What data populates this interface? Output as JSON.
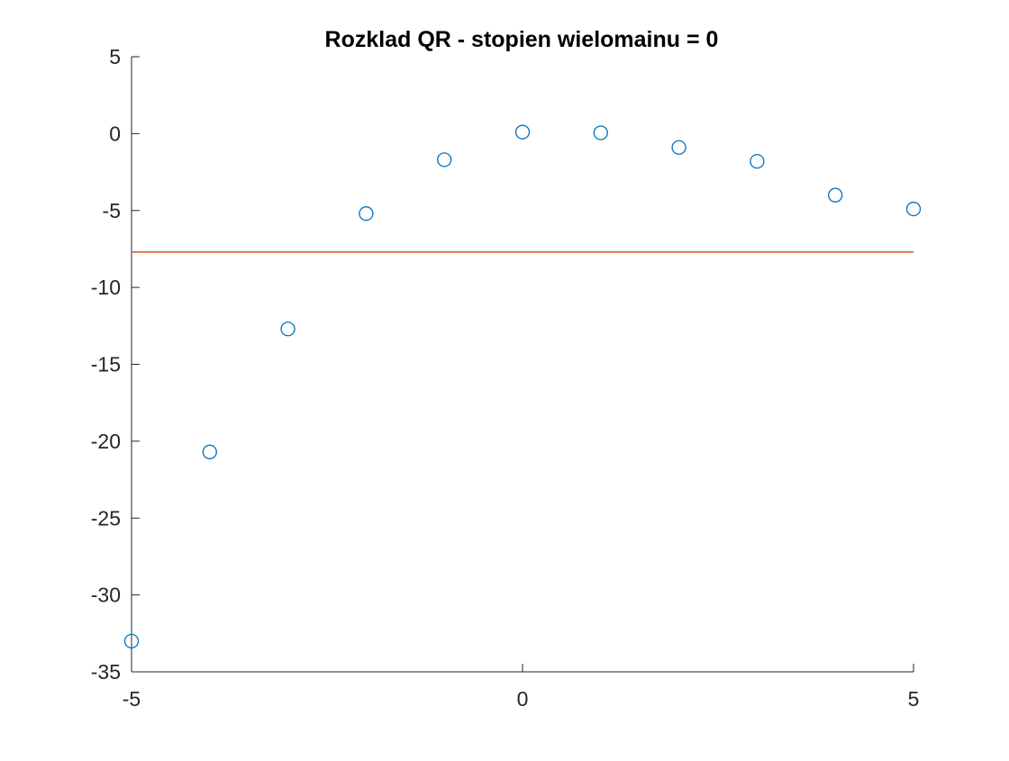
{
  "chart_data": {
    "type": "scatter",
    "title": "Rozklad QR - stopien wielomainu = 0",
    "xlabel": "",
    "ylabel": "",
    "xlim": [
      -5,
      5
    ],
    "ylim": [
      -35,
      5
    ],
    "xticks": [
      -5,
      0,
      5
    ],
    "xtick_labels": [
      "-5",
      "0",
      "5"
    ],
    "yticks": [
      5,
      0,
      -5,
      -10,
      -15,
      -20,
      -25,
      -30,
      -35
    ],
    "ytick_labels": [
      "5",
      "0",
      "-5",
      "-10",
      "-15",
      "-20",
      "-25",
      "-30",
      "-35"
    ],
    "grid": false,
    "series": [
      {
        "type": "scatter",
        "marker": "circle-open",
        "color": "#0072BD",
        "x": [
          -5,
          -4,
          -3,
          -2,
          -1,
          0,
          1,
          2,
          3,
          4,
          5
        ],
        "y": [
          -33.0,
          -20.7,
          -12.7,
          -5.2,
          -1.7,
          0.1,
          0.05,
          -0.9,
          -1.8,
          -4.0,
          -4.9
        ]
      },
      {
        "type": "line",
        "color": "#D95319",
        "x": [
          -5,
          5
        ],
        "y": [
          -7.7,
          -7.7
        ]
      }
    ]
  }
}
